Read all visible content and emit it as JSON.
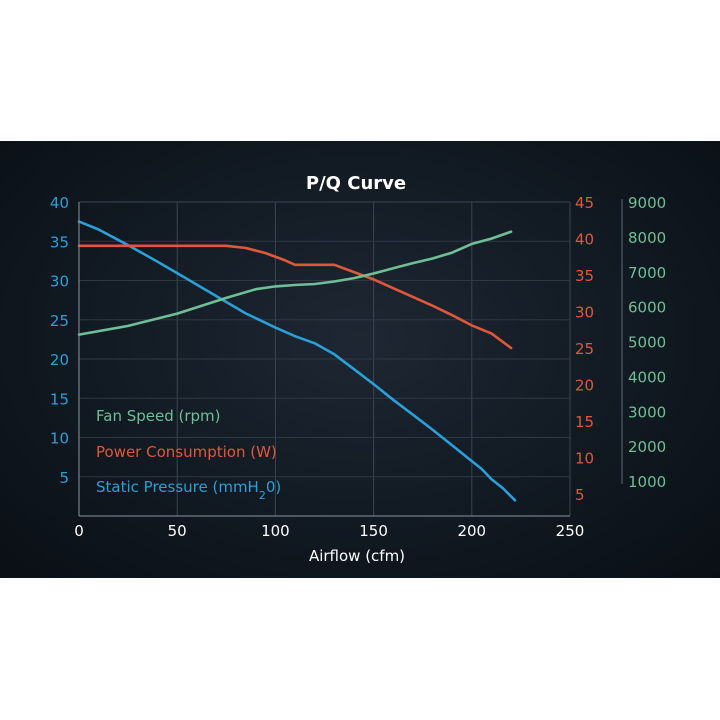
{
  "chart_data": {
    "type": "line",
    "title": "P/Q Curve",
    "xlabel": "Airflow (cfm)",
    "xlim": [
      0,
      250
    ],
    "x_ticks": [
      "0",
      "50",
      "100",
      "150",
      "200",
      "250"
    ],
    "axes": {
      "left": {
        "series": "Static Pressure (mmH2O)",
        "ylim": [
          0,
          40
        ],
        "ticks": [
          "5",
          "10",
          "15",
          "20",
          "25",
          "30",
          "35",
          "40"
        ],
        "color": "#2a9fd8"
      },
      "right_1": {
        "series": "Power Consumption (W)",
        "ylim": [
          2,
          45
        ],
        "ticks": [
          "5",
          "10",
          "15",
          "20",
          "25",
          "30",
          "35",
          "40",
          "45"
        ],
        "color": "#e0583a"
      },
      "right_2": {
        "series": "Fan Speed (rpm)",
        "ylim": [
          0,
          9000
        ],
        "ticks": [
          "1000",
          "2000",
          "3000",
          "4000",
          "5000",
          "6000",
          "7000",
          "8000",
          "9000"
        ],
        "color": "#6fbf95"
      }
    },
    "grid": true,
    "legend_position": "left",
    "legend_items": [
      {
        "label": "Fan Speed (rpm)",
        "color": "#6fbf95"
      },
      {
        "label": "Power Consumption (W)",
        "color": "#e0583a"
      },
      {
        "label": "Static Pressure (mmH",
        "sub": "2",
        "tail": "0)",
        "color": "#2a9fd8"
      }
    ],
    "series": [
      {
        "name": "Static Pressure (mmH2O)",
        "axis": "left",
        "color": "#2a9fd8",
        "x": [
          0,
          10,
          25,
          40,
          55,
          70,
          85,
          100,
          110,
          120,
          130,
          140,
          150,
          160,
          170,
          180,
          190,
          200,
          205,
          210,
          216,
          222
        ],
        "y": [
          37.5,
          36.5,
          34.5,
          32.4,
          30.2,
          28.0,
          25.8,
          24.0,
          22.9,
          22.0,
          20.6,
          18.7,
          16.8,
          14.8,
          12.9,
          11.0,
          9.0,
          7.0,
          6.0,
          4.7,
          3.5,
          2.0
        ]
      },
      {
        "name": "Power Consumption (W)",
        "axis": "right_1",
        "color": "#e0583a",
        "x": [
          0,
          25,
          50,
          75,
          85,
          95,
          105,
          110,
          120,
          130,
          140,
          150,
          160,
          170,
          180,
          190,
          200,
          210,
          220
        ],
        "y": [
          39.0,
          39.0,
          39.0,
          39.0,
          38.7,
          38.0,
          37.0,
          36.4,
          36.4,
          36.4,
          35.4,
          34.4,
          33.2,
          32.0,
          30.8,
          29.5,
          28.1,
          27.0,
          25.0
        ]
      },
      {
        "name": "Fan Speed (rpm)",
        "axis": "right_2",
        "color": "#6fbf95",
        "x": [
          0,
          25,
          50,
          75,
          90,
          100,
          110,
          120,
          130,
          140,
          150,
          160,
          170,
          180,
          190,
          200,
          210,
          220
        ],
        "y": [
          5200,
          5450,
          5800,
          6250,
          6500,
          6580,
          6620,
          6650,
          6720,
          6820,
          6950,
          7100,
          7250,
          7380,
          7550,
          7800,
          7950,
          8150
        ]
      }
    ]
  }
}
